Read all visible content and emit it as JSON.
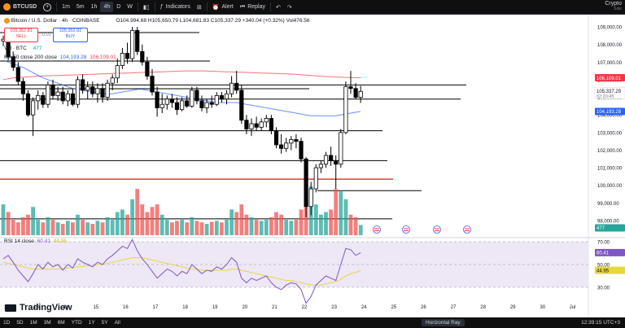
{
  "header": {
    "symbol": "BTCUSD",
    "timeframes": [
      "1m",
      "5m",
      "1h",
      "4h",
      "D",
      "W"
    ],
    "active_timeframe": "4h",
    "indicators_label": "Indicators",
    "alert_label": "Alert",
    "replay_label": "Replay",
    "brand_line1": "Crypto",
    "brand_line2": "Sale"
  },
  "chart": {
    "title": "Bitcoin / U.S. Dollar · 4h · COINBASE",
    "ohlc": "O104,994.68 H105,650.79 L104,681.83 C105,337.29 +340.04 (+0.32%) Vol476.56",
    "sell_price": "105,352.81",
    "sell_label": "SELL",
    "spread": "0.01",
    "buy_price": "105,352.82",
    "buy_label": "BUY",
    "vol_label": "Vol · BTC",
    "vol_value": "477",
    "ma_label": "MA 50 close 200 close",
    "ma50_value": "104,193.28",
    "ma200_value": "106,109.01",
    "price_ticks": [
      "109,000.00",
      "108,000.00",
      "107,000.00",
      "106,000.00",
      "105,000.00",
      "104,000.00",
      "103,000.00",
      "102,000.00",
      "101,000.00",
      "100,000.00",
      "99,000.00",
      "98,000.00"
    ],
    "price_tag_ma200": "106,109.01",
    "price_tag_last": "105,337.29",
    "price_tag_countdown": "02:20:45",
    "price_tag_ma50": "104,193.28",
    "volume_tag": "477",
    "rsi_label": "RSI 14 close",
    "rsi_value": "60.41",
    "rsi_ma_value": "44.95",
    "rsi_ticks": [
      "70.00",
      "50.00",
      "30.00"
    ],
    "rsi_tag_value": "60.41",
    "rsi_tag_ma": "44.95",
    "x_ticks": [
      "12",
      "13",
      "14",
      "15",
      "16",
      "17",
      "18",
      "19",
      "20",
      "21",
      "22",
      "23",
      "24",
      "25",
      "26",
      "27",
      "28",
      "29",
      "30",
      "Jul"
    ],
    "watermark": "TradingView"
  },
  "candles": [
    {
      "o": 108200,
      "h": 108500,
      "l": 107900,
      "c": 108300
    },
    {
      "o": 108300,
      "h": 108600,
      "l": 107100,
      "c": 107300
    },
    {
      "o": 107300,
      "h": 107600,
      "l": 106500,
      "c": 106700
    },
    {
      "o": 106700,
      "h": 107000,
      "l": 105700,
      "c": 105900
    },
    {
      "o": 105900,
      "h": 106100,
      "l": 104800,
      "c": 105200
    },
    {
      "o": 105200,
      "h": 105400,
      "l": 103900,
      "c": 104000
    },
    {
      "o": 104000,
      "h": 105000,
      "l": 102800,
      "c": 104800
    },
    {
      "o": 104800,
      "h": 105400,
      "l": 104300,
      "c": 105100
    },
    {
      "o": 105100,
      "h": 105300,
      "l": 104400,
      "c": 104600
    },
    {
      "o": 104600,
      "h": 105900,
      "l": 104400,
      "c": 105700
    },
    {
      "o": 105700,
      "h": 106000,
      "l": 104900,
      "c": 105100
    },
    {
      "o": 105100,
      "h": 105600,
      "l": 104800,
      "c": 105300
    },
    {
      "o": 105300,
      "h": 105600,
      "l": 104600,
      "c": 104800
    },
    {
      "o": 104800,
      "h": 105400,
      "l": 104500,
      "c": 105200
    },
    {
      "o": 105200,
      "h": 105500,
      "l": 104500,
      "c": 104600
    },
    {
      "o": 104600,
      "h": 106200,
      "l": 104400,
      "c": 106000
    },
    {
      "o": 106000,
      "h": 106300,
      "l": 105200,
      "c": 105400
    },
    {
      "o": 105400,
      "h": 105900,
      "l": 104900,
      "c": 105600
    },
    {
      "o": 105600,
      "h": 105900,
      "l": 105000,
      "c": 105200
    },
    {
      "o": 105200,
      "h": 105800,
      "l": 104700,
      "c": 105500
    },
    {
      "o": 105500,
      "h": 105800,
      "l": 104700,
      "c": 105000
    },
    {
      "o": 105000,
      "h": 106000,
      "l": 104800,
      "c": 105800
    },
    {
      "o": 105800,
      "h": 106300,
      "l": 105400,
      "c": 106100
    },
    {
      "o": 106100,
      "h": 107200,
      "l": 105800,
      "c": 106800
    },
    {
      "o": 106800,
      "h": 107800,
      "l": 106600,
      "c": 107500
    },
    {
      "o": 107500,
      "h": 108100,
      "l": 106900,
      "c": 107200
    },
    {
      "o": 107200,
      "h": 109000,
      "l": 107000,
      "c": 108800
    },
    {
      "o": 108800,
      "h": 109000,
      "l": 107400,
      "c": 107600
    },
    {
      "o": 107600,
      "h": 108000,
      "l": 106800,
      "c": 107000
    },
    {
      "o": 107000,
      "h": 107300,
      "l": 106000,
      "c": 106200
    },
    {
      "o": 106200,
      "h": 106600,
      "l": 105100,
      "c": 105300
    },
    {
      "o": 105300,
      "h": 105600,
      "l": 103900,
      "c": 104400
    },
    {
      "o": 104400,
      "h": 105200,
      "l": 104100,
      "c": 104600
    },
    {
      "o": 104600,
      "h": 105100,
      "l": 104300,
      "c": 104900
    },
    {
      "o": 104900,
      "h": 105200,
      "l": 104400,
      "c": 104700
    },
    {
      "o": 104700,
      "h": 105000,
      "l": 104000,
      "c": 104300
    },
    {
      "o": 104300,
      "h": 105000,
      "l": 104200,
      "c": 104800
    },
    {
      "o": 104800,
      "h": 105100,
      "l": 104400,
      "c": 104500
    },
    {
      "o": 104500,
      "h": 105600,
      "l": 104400,
      "c": 105400
    },
    {
      "o": 105400,
      "h": 105600,
      "l": 104600,
      "c": 104800
    },
    {
      "o": 104800,
      "h": 105100,
      "l": 104200,
      "c": 104400
    },
    {
      "o": 104400,
      "h": 104900,
      "l": 104100,
      "c": 104700
    },
    {
      "o": 104700,
      "h": 105100,
      "l": 104400,
      "c": 104600
    },
    {
      "o": 104600,
      "h": 105300,
      "l": 104500,
      "c": 105100
    },
    {
      "o": 105100,
      "h": 105300,
      "l": 104700,
      "c": 104900
    },
    {
      "o": 104900,
      "h": 105400,
      "l": 104600,
      "c": 105200
    },
    {
      "o": 105200,
      "h": 106200,
      "l": 105000,
      "c": 105800
    },
    {
      "o": 105800,
      "h": 106500,
      "l": 105200,
      "c": 105400
    },
    {
      "o": 105400,
      "h": 105700,
      "l": 103500,
      "c": 103700
    },
    {
      "o": 103700,
      "h": 104000,
      "l": 102900,
      "c": 103200
    },
    {
      "o": 103200,
      "h": 103800,
      "l": 102800,
      "c": 103500
    },
    {
      "o": 103500,
      "h": 103900,
      "l": 103100,
      "c": 103300
    },
    {
      "o": 103300,
      "h": 103800,
      "l": 103100,
      "c": 103600
    },
    {
      "o": 103600,
      "h": 104000,
      "l": 103300,
      "c": 103800
    },
    {
      "o": 103800,
      "h": 104000,
      "l": 102900,
      "c": 103100
    },
    {
      "o": 103100,
      "h": 103300,
      "l": 102100,
      "c": 102300
    },
    {
      "o": 102300,
      "h": 102900,
      "l": 101800,
      "c": 102100
    },
    {
      "o": 102100,
      "h": 102700,
      "l": 101900,
      "c": 102400
    },
    {
      "o": 102400,
      "h": 102800,
      "l": 102000,
      "c": 102600
    },
    {
      "o": 102600,
      "h": 102900,
      "l": 102100,
      "c": 102500
    },
    {
      "o": 102500,
      "h": 102700,
      "l": 101300,
      "c": 101500
    },
    {
      "o": 101500,
      "h": 101600,
      "l": 98200,
      "c": 98800
    },
    {
      "o": 98800,
      "h": 100200,
      "l": 98300,
      "c": 99800
    },
    {
      "o": 99800,
      "h": 101200,
      "l": 99600,
      "c": 101000
    },
    {
      "o": 101000,
      "h": 101400,
      "l": 100700,
      "c": 101200
    },
    {
      "o": 101200,
      "h": 101900,
      "l": 101000,
      "c": 101700
    },
    {
      "o": 101700,
      "h": 102200,
      "l": 101100,
      "c": 101400
    },
    {
      "o": 101400,
      "h": 101700,
      "l": 99800,
      "c": 101200
    },
    {
      "o": 101200,
      "h": 103200,
      "l": 101000,
      "c": 103000
    },
    {
      "o": 103000,
      "h": 105900,
      "l": 102900,
      "c": 105600
    },
    {
      "o": 105600,
      "h": 106500,
      "l": 105200,
      "c": 105500
    },
    {
      "o": 105500,
      "h": 105800,
      "l": 104900,
      "c": 104995
    },
    {
      "o": 104995,
      "h": 105650,
      "l": 104682,
      "c": 105337
    }
  ],
  "volumes": [
    60,
    45,
    30,
    25,
    35,
    40,
    55,
    30,
    25,
    35,
    30,
    25,
    22,
    28,
    25,
    40,
    30,
    25,
    22,
    28,
    25,
    35,
    30,
    45,
    50,
    40,
    70,
    90,
    60,
    45,
    55,
    60,
    40,
    30,
    25,
    28,
    30,
    25,
    35,
    28,
    25,
    22,
    26,
    28,
    25,
    30,
    50,
    45,
    60,
    40,
    35,
    30,
    28,
    30,
    35,
    45,
    40,
    30,
    28,
    30,
    50,
    80,
    95,
    60,
    40,
    45,
    50,
    90,
    85,
    70,
    40,
    35,
    20
  ],
  "ma50": [
    107100,
    107000,
    106900,
    106800,
    106700,
    106550,
    106400,
    106250,
    106100,
    106000,
    105900,
    105800,
    105700,
    105600,
    105500,
    105450,
    105400,
    105350,
    105300,
    105250,
    105200,
    105200,
    105200,
    105250,
    105300,
    105350,
    105400,
    105450,
    105450,
    105400,
    105350,
    105300,
    105250,
    105200,
    105150,
    105100,
    105050,
    105000,
    104950,
    104900,
    104850,
    104800,
    104750,
    104700,
    104700,
    104700,
    104700,
    104700,
    104650,
    104600,
    104550,
    104500,
    104450,
    104400,
    104350,
    104300,
    104250,
    104200,
    104150,
    104100,
    104050,
    104000,
    103950,
    103950,
    103950,
    103950,
    103950,
    103950,
    104000,
    104050,
    104100,
    104150,
    104193
  ],
  "ma200": [
    106000,
    106050,
    106100,
    106120,
    106140,
    106160,
    106180,
    106200,
    106210,
    106220,
    106230,
    106240,
    106250,
    106260,
    106270,
    106280,
    106290,
    106300,
    106310,
    106320,
    106330,
    106340,
    106350,
    106360,
    106370,
    106380,
    106390,
    106400,
    106410,
    106420,
    106430,
    106440,
    106450,
    106460,
    106470,
    106480,
    106490,
    106500,
    106500,
    106500,
    106500,
    106490,
    106480,
    106470,
    106460,
    106450,
    106440,
    106430,
    106420,
    106410,
    106400,
    106390,
    106380,
    106370,
    106360,
    106350,
    106340,
    106330,
    106320,
    106300,
    106280,
    106260,
    106240,
    106220,
    106200,
    106180,
    106160,
    106150,
    106140,
    106130,
    106120,
    106110,
    106109
  ],
  "rsi": [
    55,
    58,
    52,
    45,
    40,
    35,
    42,
    50,
    46,
    52,
    48,
    50,
    45,
    50,
    47,
    55,
    52,
    50,
    48,
    52,
    50,
    55,
    58,
    62,
    66,
    64,
    72,
    62,
    55,
    50,
    44,
    38,
    42,
    46,
    44,
    40,
    44,
    42,
    50,
    46,
    42,
    45,
    44,
    48,
    46,
    50,
    56,
    52,
    38,
    34,
    38,
    36,
    38,
    40,
    34,
    30,
    28,
    32,
    34,
    33,
    28,
    16,
    22,
    32,
    36,
    40,
    38,
    36,
    50,
    64,
    63,
    58,
    60.41
  ],
  "rsi_ma": [
    52,
    51,
    50,
    49,
    48,
    47,
    46,
    46,
    46,
    46,
    46,
    46,
    46,
    47,
    47,
    48,
    48,
    49,
    49,
    50,
    50,
    51,
    52,
    53,
    54,
    55,
    56,
    56,
    56,
    55,
    54,
    53,
    52,
    51,
    50,
    49,
    48,
    47,
    46,
    46,
    45,
    45,
    45,
    45,
    45,
    45,
    46,
    46,
    45,
    44,
    43,
    42,
    41,
    40,
    39,
    38,
    37,
    36,
    36,
    35,
    34,
    33,
    32,
    32,
    32,
    33,
    34,
    35,
    37,
    40,
    42,
    43,
    44.95
  ],
  "levels": [
    {
      "price": 105700,
      "color": "#000000",
      "width": 1
    },
    {
      "price": 104900,
      "color": "#000000",
      "width": 1
    },
    {
      "price": 103100,
      "color": "#000000",
      "width": 1
    },
    {
      "price": 101400,
      "color": "#000000",
      "width": 1
    },
    {
      "price": 100350,
      "color": "#e53935",
      "width": 1.5
    },
    {
      "price": 99700,
      "color": "#000000",
      "width": 1
    },
    {
      "price": 98100,
      "color": "#000000",
      "width": 1
    }
  ],
  "colors": {
    "up": "#ffffff",
    "down": "#000000",
    "ma50": "#2962ff",
    "ma200": "#f23645",
    "rsi": "#7e57c2",
    "rsi_ma": "#e6d83a",
    "vol_up": "#26a69a",
    "vol_down": "#ef5350",
    "rsi_band": "#ede7f6"
  },
  "bottom": {
    "ranges": [
      "1D",
      "5D",
      "1M",
      "3M",
      "6M",
      "YTD",
      "1Y",
      "5Y",
      "All"
    ],
    "tool": "Horizontal Ray",
    "time": "12:39:15 UTC+3"
  }
}
